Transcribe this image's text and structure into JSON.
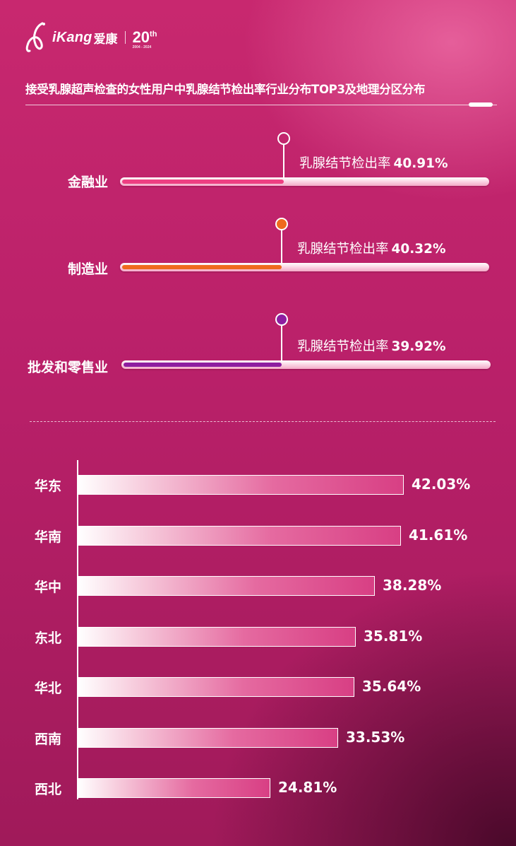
{
  "brand": {
    "logo_text": "iKang",
    "logo_cn": "爱康",
    "anniversary_number": "20",
    "anniversary_suffix": "th",
    "anniversary_years": "2004 - 2024"
  },
  "header": {
    "title": "接受乳腺超声检查的女性用户中乳腺结节检出率行业分布TOP3及地理分区分布"
  },
  "colors": {
    "finance": "#ee3f82",
    "manufacturing": "#ef6a1e",
    "retail": "#8e1ea0",
    "background": "#c0246c"
  },
  "chart_data": [
    {
      "type": "bar",
      "categories": [
        "金融业",
        "制造业",
        "批发和零售业"
      ],
      "series": [
        {
          "name": "乳腺结节检出率",
          "values": [
            40.91,
            40.32,
            39.92
          ],
          "value_labels": [
            "40.91%",
            "40.32%",
            "39.92%"
          ]
        }
      ]
    },
    {
      "type": "bar",
      "orientation": "horizontal",
      "categories": [
        "华东",
        "华南",
        "华中",
        "东北",
        "华北",
        "西南",
        "西北"
      ],
      "values": [
        42.03,
        41.61,
        38.28,
        35.81,
        35.64,
        33.53,
        24.81
      ],
      "value_labels": [
        "42.03%",
        "41.61%",
        "38.28%",
        "35.81%",
        "35.64%",
        "33.53%",
        "24.81%"
      ]
    }
  ]
}
